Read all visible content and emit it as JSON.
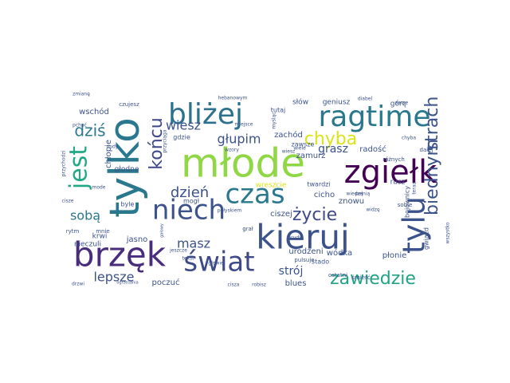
{
  "words": [
    {
      "text": "młode",
      "color": "#8fd744"
    },
    {
      "text": "tylko",
      "color": "#2a788e"
    },
    {
      "text": "kieruj",
      "color": "#3b528b"
    },
    {
      "text": "brzęk",
      "color": "#472d7b"
    },
    {
      "text": "zgiełk",
      "color": "#440154"
    },
    {
      "text": "ragtime",
      "color": "#2a788e"
    },
    {
      "text": "bliżej",
      "color": "#2c728e"
    },
    {
      "text": "tylu",
      "color": "#3b528b"
    },
    {
      "text": "jest",
      "color": "#22a884"
    },
    {
      "text": "czas",
      "color": "#2a788e"
    },
    {
      "text": "świat",
      "color": "#3e4989"
    },
    {
      "text": "niech",
      "color": "#3b528b"
    },
    {
      "text": "zawiedzie",
      "color": "#20a386"
    },
    {
      "text": "chyba",
      "color": "#dde318"
    },
    {
      "text": "końcu",
      "color": "#3e4989"
    },
    {
      "text": "życie",
      "color": "#3e4989"
    },
    {
      "text": "biednym",
      "color": "#3b528b"
    },
    {
      "text": "strach",
      "color": "#3b528b"
    },
    {
      "text": "dziś",
      "color": "#2a788e"
    },
    {
      "text": "wiesz",
      "color": "#3b528b"
    },
    {
      "text": "głupim",
      "color": "#3b528b"
    },
    {
      "text": "grasz",
      "color": "#3b528b"
    },
    {
      "text": "dzień",
      "color": "#3b528b"
    },
    {
      "text": "sobą",
      "color": "#2a788e"
    },
    {
      "text": "masz",
      "color": "#3b528b"
    },
    {
      "text": "lepsze",
      "color": "#3b528b"
    },
    {
      "text": "strój",
      "color": "#3b528b"
    },
    {
      "text": "wschód",
      "color": "#3b528b"
    },
    {
      "text": "geniusz",
      "color": "#3b528b"
    },
    {
      "text": "słów",
      "color": "#3b528b"
    },
    {
      "text": "górę",
      "color": "#3b528b"
    },
    {
      "text": "zachód",
      "color": "#3b528b"
    },
    {
      "text": "zawsze",
      "color": "#3b528b"
    },
    {
      "text": "zamurz",
      "color": "#3b528b"
    },
    {
      "text": "radość",
      "color": "#3b528b"
    },
    {
      "text": "różnych",
      "color": "#3b528b"
    },
    {
      "text": "chłopie",
      "color": "#3b528b"
    },
    {
      "text": "głodne",
      "color": "#3b528b"
    },
    {
      "text": "gdzie",
      "color": "#3b528b"
    },
    {
      "text": "mogł",
      "color": "#3b528b"
    },
    {
      "text": "cicho",
      "color": "#3b528b"
    },
    {
      "text": "znowu",
      "color": "#3b528b"
    },
    {
      "text": "ciszej",
      "color": "#3b528b"
    },
    {
      "text": "wreszcie",
      "color": "#d8e219"
    },
    {
      "text": "twardzi",
      "color": "#3b528b"
    },
    {
      "text": "jasno",
      "color": "#3b528b"
    },
    {
      "text": "nieczuli",
      "color": "#3b528b"
    },
    {
      "text": "krwi",
      "color": "#3b528b"
    },
    {
      "text": "poczuć",
      "color": "#3b528b"
    },
    {
      "text": "blues",
      "color": "#3b528b"
    },
    {
      "text": "urodzeni",
      "color": "#3b528b"
    },
    {
      "text": "wódka",
      "color": "#3b528b"
    },
    {
      "text": "stado",
      "color": "#3b528b"
    },
    {
      "text": "płonie",
      "color": "#3b528b"
    },
    {
      "text": "tutaj",
      "color": "#3b528b"
    },
    {
      "text": "ostatni",
      "color": "#3b528b"
    },
    {
      "text": "śmierć",
      "color": "#3b528b"
    },
    {
      "text": "bojownicy",
      "color": "#3b528b"
    },
    {
      "text": "gwiazd",
      "color": "#3b528b"
    },
    {
      "text": "rusz",
      "color": "#3b528b"
    },
    {
      "text": "dalej",
      "color": "#3b528b"
    },
    {
      "text": "sobie",
      "color": "#3b528b"
    },
    {
      "text": "mnie",
      "color": "#3b528b"
    },
    {
      "text": "byle",
      "color": "#3b528b"
    },
    {
      "text": "rytm",
      "color": "#3b528b"
    },
    {
      "text": "cisze",
      "color": "#3b528b"
    },
    {
      "text": "drzwi",
      "color": "#3b528b"
    },
    {
      "text": "ogrzesania",
      "color": "#3b528b"
    },
    {
      "text": "cisza",
      "color": "#3b528b"
    },
    {
      "text": "robisz",
      "color": "#3b528b"
    },
    {
      "text": "pełnią",
      "color": "#3b528b"
    },
    {
      "text": "wiedzą",
      "color": "#3b528b"
    },
    {
      "text": "nudy",
      "color": "#3b528b"
    },
    {
      "text": "pchać",
      "color": "#3b528b"
    },
    {
      "text": "zmianę",
      "color": "#3b528b"
    },
    {
      "text": "czujesz",
      "color": "#3b528b"
    },
    {
      "text": "hebanowym",
      "color": "#3b528b"
    },
    {
      "text": "diabel",
      "color": "#3b528b"
    },
    {
      "text": "same",
      "color": "#3b528b"
    },
    {
      "text": "miejsce",
      "color": "#3b528b"
    },
    {
      "text": "myśląc",
      "color": "#3b528b"
    },
    {
      "text": "połyskiem",
      "color": "#3b528b"
    },
    {
      "text": "brudy",
      "color": "#3b528b"
    },
    {
      "text": "pulsuje",
      "color": "#3b528b"
    },
    {
      "text": "grał",
      "color": "#3b528b"
    },
    {
      "text": "gałowy",
      "color": "#3b528b"
    },
    {
      "text": "jeszcze",
      "color": "#3b528b"
    },
    {
      "text": "głowie",
      "color": "#3b528b"
    },
    {
      "text": "wszystko",
      "color": "#3b528b"
    },
    {
      "text": "teraz",
      "color": "#3b528b"
    },
    {
      "text": "wiesz",
      "color": "#3b528b"
    },
    {
      "text": "przychodzi",
      "color": "#3b528b"
    },
    {
      "text": "przyciąga",
      "color": "#3b528b"
    },
    {
      "text": "wzory",
      "color": "#3b528b"
    },
    {
      "text": "wiele",
      "color": "#3b528b"
    },
    {
      "text": "mode",
      "color": "#3b528b"
    },
    {
      "text": "chyba",
      "color": "#3b528b"
    },
    {
      "text": "tekst",
      "color": "#3b528b"
    },
    {
      "text": "widzę",
      "color": "#3b528b"
    }
  ]
}
